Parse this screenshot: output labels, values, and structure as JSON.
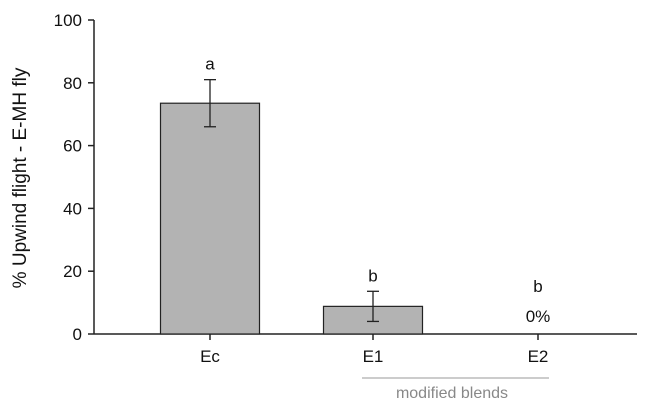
{
  "chart_data": {
    "type": "bar",
    "ylabel": "% Upwind flight - E-MH fly",
    "xlabel": "",
    "ylim": [
      0,
      100
    ],
    "yticks": [
      0,
      20,
      40,
      60,
      80,
      100
    ],
    "categories": [
      "Ec",
      "E1",
      "E2"
    ],
    "values": [
      73.5,
      8.8,
      0
    ],
    "error": [
      7.5,
      4.8,
      0
    ],
    "significance_letters": [
      "a",
      "b",
      "b"
    ],
    "value_annotations": [
      "",
      "",
      "0%"
    ],
    "group_bracket_label": "modified blends",
    "bar_color": "#b3b3b3",
    "bar_edge_color": "#222222",
    "grid": false
  }
}
